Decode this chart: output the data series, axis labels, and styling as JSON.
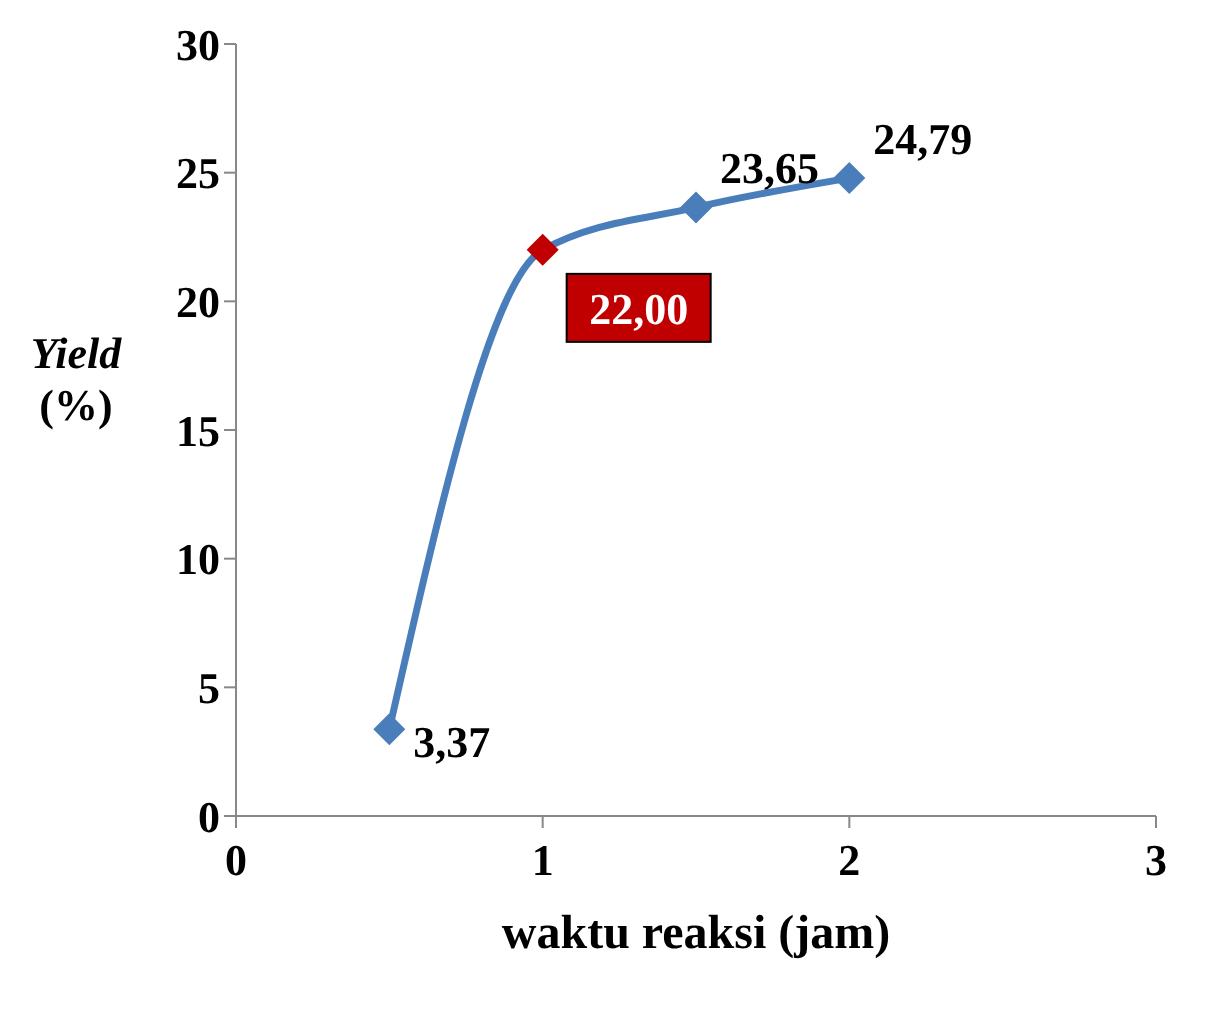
{
  "chart_data": {
    "type": "line",
    "xlabel": "waktu reaksi (jam)",
    "ylabel": "Yield (%)",
    "x": [
      0.5,
      1,
      1.5,
      2
    ],
    "series": [
      {
        "color": "#4a7ebb",
        "colors": [
          "#4a7ebb",
          "#c00000",
          "#4a7ebb",
          "#4a7ebb"
        ],
        "values": [
          3.37,
          22.0,
          23.65,
          24.79
        ],
        "value_labels": [
          "3,37",
          "22,00",
          "23,65",
          "24,79"
        ]
      }
    ],
    "xlim": [
      0,
      3
    ],
    "xticks": [
      0,
      1,
      2,
      3
    ],
    "ylim": [
      0,
      30
    ],
    "yticks": [
      0,
      5,
      10,
      15,
      20,
      25,
      30
    ],
    "grid": false,
    "legend": false,
    "marker": "diamond",
    "line_style": "solid"
  }
}
